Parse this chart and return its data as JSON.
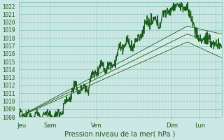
{
  "xlabel": "Pression niveau de la mer( hPa )",
  "ylim": [
    1008,
    1022.5
  ],
  "xlim": [
    0,
    130
  ],
  "yticks": [
    1008,
    1009,
    1010,
    1011,
    1012,
    1013,
    1014,
    1015,
    1016,
    1017,
    1018,
    1019,
    1020,
    1021,
    1022
  ],
  "xtick_positions": [
    2,
    20,
    50,
    98,
    116,
    126
  ],
  "xtick_labels": [
    "Jeu",
    "Sam",
    "Ven",
    "Dim",
    "Lun",
    ""
  ],
  "bg_color": "#cce8e4",
  "grid_minor_color": "#aad4cc",
  "grid_major_color": "#88c4b8",
  "line_color": "#1a5c1a",
  "font_color": "#225522",
  "xlabel_fontsize": 7.0,
  "ytick_fontsize": 5.5,
  "xtick_fontsize": 6.0
}
